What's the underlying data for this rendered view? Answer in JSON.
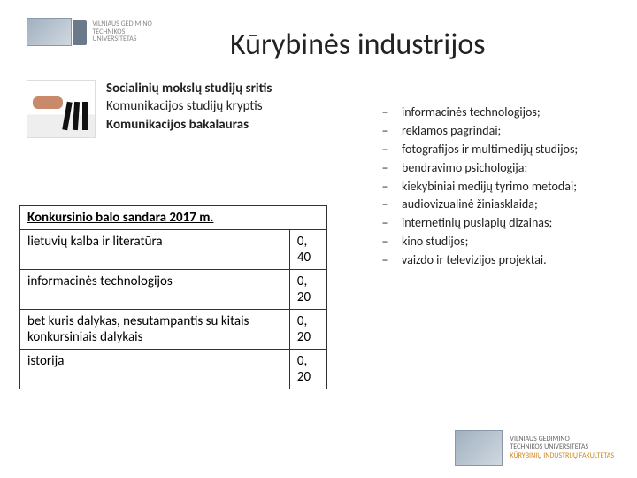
{
  "logo_top": {
    "line1": "VILNIAUS GEDIMINO",
    "line2": "TECHNIKOS UNIVERSITETAS"
  },
  "title": "Kūrybinės industrijos",
  "heading": {
    "line1": "Socialinių mokslų studijų sritis",
    "line2": "Komunikacijos studijų kryptis",
    "line3": "Komunikacijos bakalauras"
  },
  "table": {
    "header": "Konkursinio balo sandara 2017 m.",
    "rows": [
      {
        "subject": "lietuvių kalba ir literatūra",
        "weight": "0, 40"
      },
      {
        "subject": "informacinės technologijos",
        "weight": "0, 20"
      },
      {
        "subject": "bet kuris dalykas, nesutampantis su kitais konkursiniais dalykais",
        "weight": "0, 20"
      },
      {
        "subject": "istorija",
        "weight": "0, 20"
      }
    ]
  },
  "bullets": [
    "informacinės technologijos;",
    "reklamos pagrindai;",
    "fotografijos ir multimedijų studijos;",
    "bendravimo psichologija;",
    "kiekybiniai medijų tyrimo metodai;",
    "audiovizualinė žiniasklaida;",
    "internetinių puslapių dizainas;",
    "kino studijos;",
    "vaizdo ir televizijos projektai."
  ],
  "logo_bottom": {
    "line1": "VILNIAUS GEDIMINO",
    "line2": "TECHNIKOS UNIVERSITETAS",
    "line3": "KŪRYBINIŲ INDUSTRIJŲ FAKULTETAS"
  }
}
